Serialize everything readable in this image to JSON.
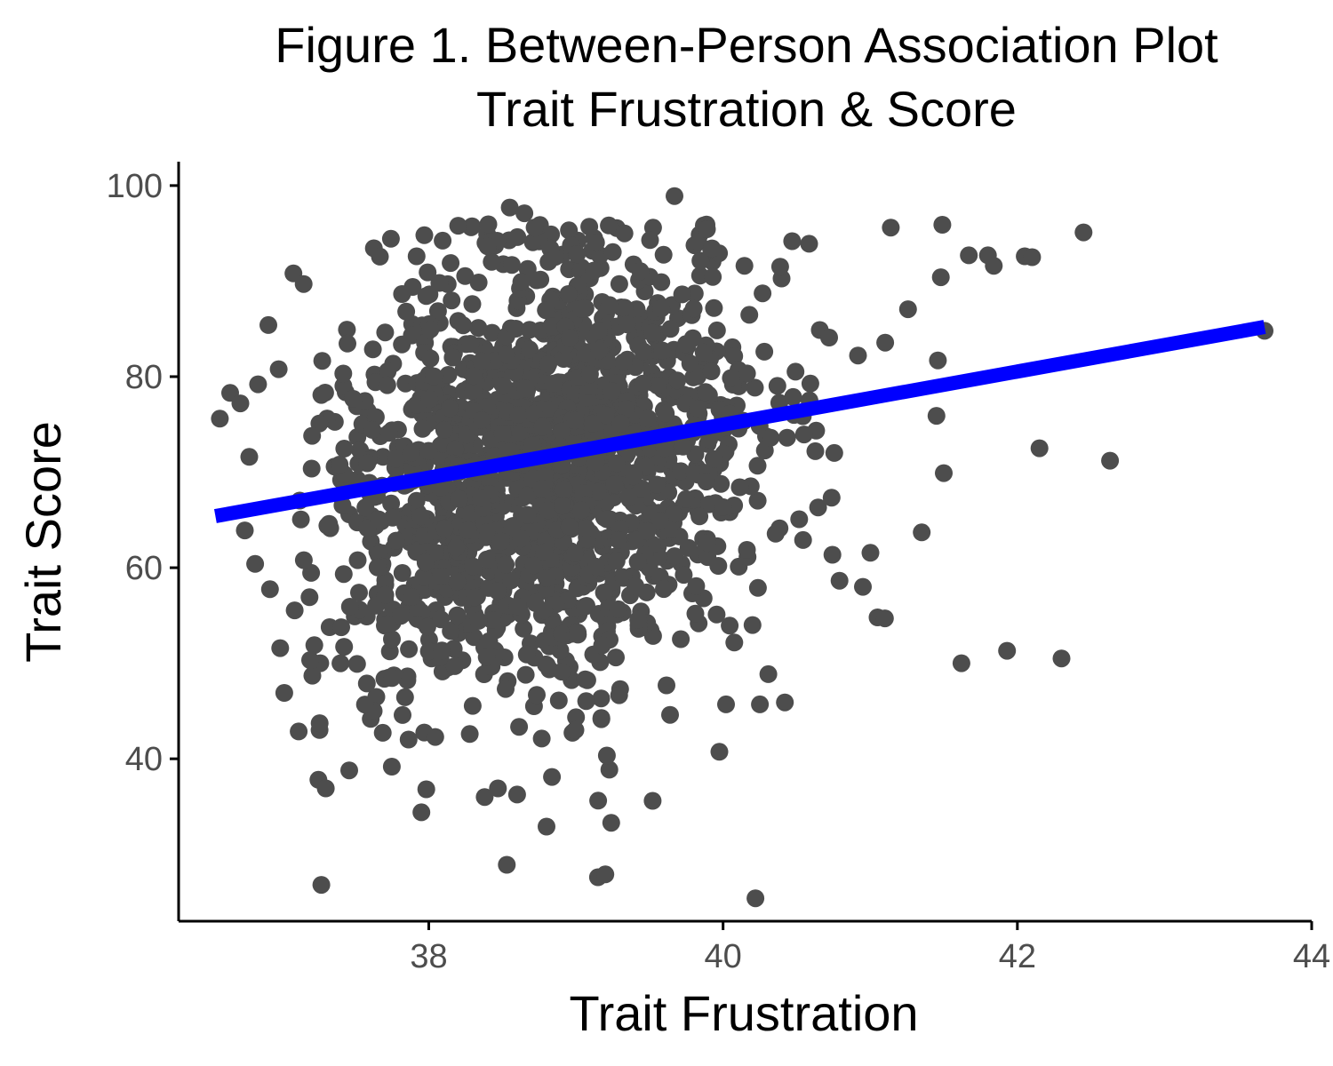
{
  "chart_data": {
    "type": "scatter",
    "title": "Figure 1. Between-Person Association Plot",
    "subtitle": "Trait Frustration & Score",
    "xlabel": "Trait Frustration",
    "ylabel": "Trait Score",
    "xlim": [
      36.3,
      44.0
    ],
    "ylim": [
      23.0,
      102.5
    ],
    "x_ticks": [
      38,
      40,
      42,
      44
    ],
    "y_ticks": [
      40,
      60,
      80,
      100
    ],
    "grid": false,
    "legend": "none",
    "point_color": "#4d4d4d",
    "line_color": "#0000ff",
    "trend_line": {
      "x": [
        36.55,
        43.68
      ],
      "y": [
        65.4,
        85.2
      ]
    },
    "cluster_center": {
      "x": 38.75,
      "y": 70.5
    },
    "approx_n": 1700,
    "outliers": [
      {
        "x": 39.67,
        "y": 98.9
      },
      {
        "x": 38.55,
        "y": 97.7
      },
      {
        "x": 38.65,
        "y": 97.1
      },
      {
        "x": 42.45,
        "y": 95.1
      },
      {
        "x": 41.49,
        "y": 95.9
      },
      {
        "x": 41.14,
        "y": 95.6
      },
      {
        "x": 42.05,
        "y": 92.6
      },
      {
        "x": 42.1,
        "y": 92.5
      },
      {
        "x": 41.67,
        "y": 92.7
      },
      {
        "x": 41.8,
        "y": 92.7
      },
      {
        "x": 41.84,
        "y": 91.6
      },
      {
        "x": 41.48,
        "y": 90.4
      },
      {
        "x": 43.68,
        "y": 84.8
      },
      {
        "x": 42.63,
        "y": 71.2
      },
      {
        "x": 42.15,
        "y": 72.5
      },
      {
        "x": 41.93,
        "y": 51.3
      },
      {
        "x": 42.3,
        "y": 50.5
      },
      {
        "x": 41.62,
        "y": 50.0
      },
      {
        "x": 41.35,
        "y": 63.7
      },
      {
        "x": 41.5,
        "y": 69.9
      },
      {
        "x": 41.45,
        "y": 75.9
      },
      {
        "x": 41.46,
        "y": 81.7
      },
      {
        "x": 37.27,
        "y": 26.8
      },
      {
        "x": 38.53,
        "y": 28.9
      },
      {
        "x": 39.15,
        "y": 27.6
      },
      {
        "x": 39.2,
        "y": 27.9
      },
      {
        "x": 40.22,
        "y": 25.4
      },
      {
        "x": 38.8,
        "y": 32.9
      },
      {
        "x": 39.24,
        "y": 33.3
      },
      {
        "x": 37.95,
        "y": 34.4
      },
      {
        "x": 37.25,
        "y": 37.8
      },
      {
        "x": 37.3,
        "y": 36.9
      },
      {
        "x": 38.38,
        "y": 36.0
      },
      {
        "x": 38.47,
        "y": 36.9
      },
      {
        "x": 36.58,
        "y": 75.6
      },
      {
        "x": 36.65,
        "y": 78.3
      },
      {
        "x": 36.72,
        "y": 77.2
      },
      {
        "x": 36.78,
        "y": 71.6
      },
      {
        "x": 36.75,
        "y": 63.9
      },
      {
        "x": 36.82,
        "y": 60.4
      },
      {
        "x": 36.84,
        "y": 79.2
      },
      {
        "x": 36.91,
        "y": 85.4
      },
      {
        "x": 37.08,
        "y": 90.8
      },
      {
        "x": 37.15,
        "y": 89.7
      },
      {
        "x": 40.25,
        "y": 45.7
      },
      {
        "x": 40.42,
        "y": 45.9
      },
      {
        "x": 40.02,
        "y": 45.7
      },
      {
        "x": 40.95,
        "y": 58.0
      },
      {
        "x": 41.05,
        "y": 54.8
      },
      {
        "x": 41.1,
        "y": 54.7
      },
      {
        "x": 40.2,
        "y": 54.0
      }
    ]
  }
}
